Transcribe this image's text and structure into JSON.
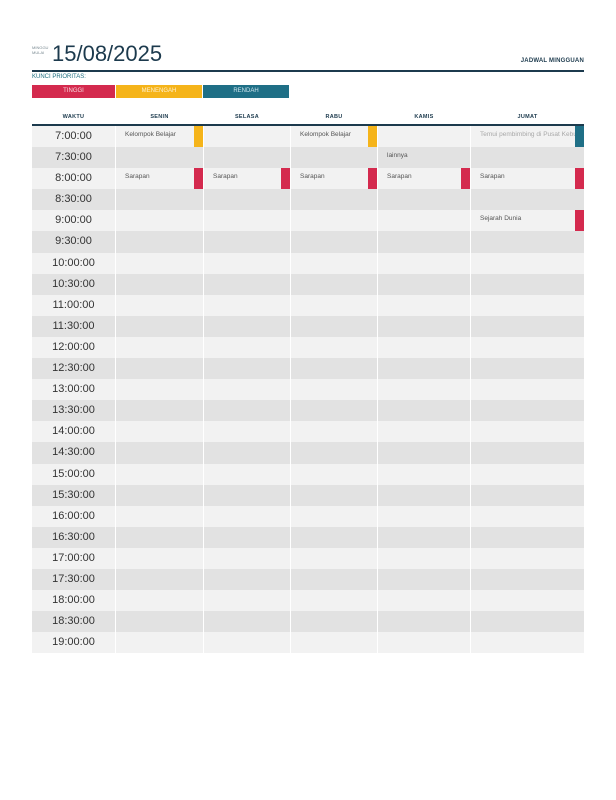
{
  "header": {
    "week_label": "MINGGU MULAI",
    "date": "15/08/2025",
    "title": "JADWAL MINGGUAN"
  },
  "priority": {
    "label": "KUNCI PRIORITAS:",
    "high": "TINGGI",
    "medium": "MENENGAH",
    "low": "RENDAH"
  },
  "colors": {
    "high": "#d42a4e",
    "medium": "#f5b41a",
    "low": "#1f6f86",
    "accent": "#1c3a4d"
  },
  "columns": [
    "WAKTU",
    "SENIN",
    "SELASA",
    "RABU",
    "KAMIS",
    "JUMAT"
  ],
  "times": [
    "7:00:00",
    "7:30:00",
    "8:00:00",
    "8:30:00",
    "9:00:00",
    "9:30:00",
    "10:00:00",
    "10:30:00",
    "11:00:00",
    "11:30:00",
    "12:00:00",
    "12:30:00",
    "13:00:00",
    "13:30:00",
    "14:00:00",
    "14:30:00",
    "15:00:00",
    "15:30:00",
    "16:00:00",
    "16:30:00",
    "17:00:00",
    "17:30:00",
    "18:00:00",
    "18:30:00",
    "19:00:00"
  ],
  "events": [
    {
      "row": 0,
      "col": 1,
      "text": "Kelompok Belajar",
      "priority": "med"
    },
    {
      "row": 0,
      "col": 3,
      "text": "Kelompok Belajar",
      "priority": "med"
    },
    {
      "row": 0,
      "col": 5,
      "text": "Temui pembimbing di Pusat Kebugaran",
      "priority": "low",
      "faded": true
    },
    {
      "row": 1,
      "col": 4,
      "text": "lainnya",
      "priority": ""
    },
    {
      "row": 2,
      "col": 1,
      "text": "Sarapan",
      "priority": "high"
    },
    {
      "row": 2,
      "col": 2,
      "text": "Sarapan",
      "priority": "high"
    },
    {
      "row": 2,
      "col": 3,
      "text": "Sarapan",
      "priority": "high"
    },
    {
      "row": 2,
      "col": 4,
      "text": "Sarapan",
      "priority": "high"
    },
    {
      "row": 2,
      "col": 5,
      "text": "Sarapan",
      "priority": "high"
    },
    {
      "row": 4,
      "col": 5,
      "text": "Sejarah Dunia",
      "priority": "high"
    }
  ]
}
